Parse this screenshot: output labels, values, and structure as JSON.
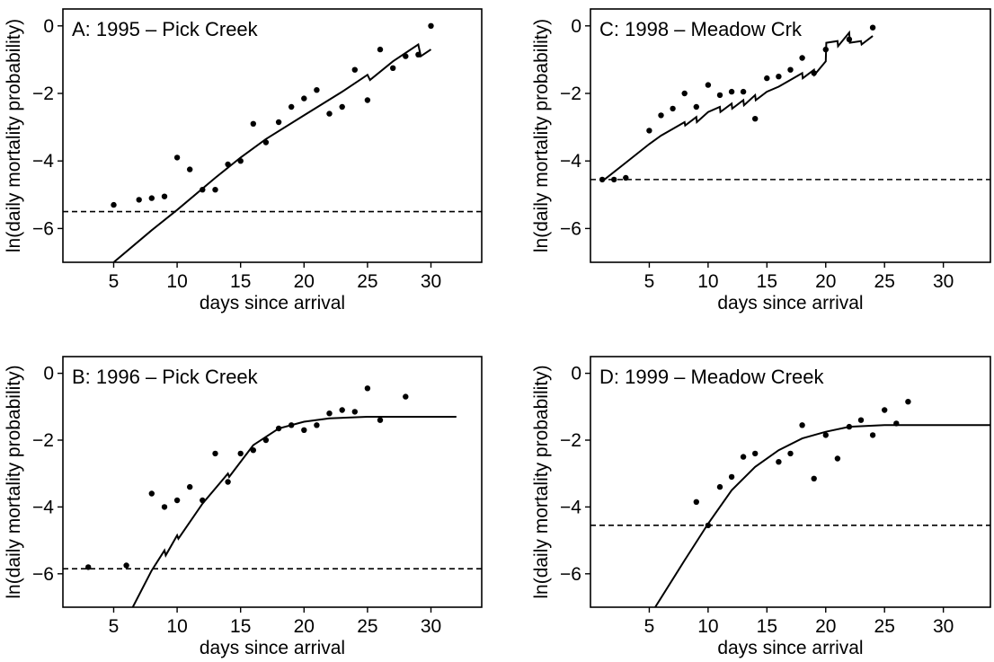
{
  "chart_data": [
    {
      "id": "A",
      "type": "scatter",
      "title": "A: 1995 – Pick Creek",
      "xlabel": "days since arrival",
      "ylabel": "ln(daily mortality probability)",
      "xlim": [
        1,
        34
      ],
      "ylim": [
        -7,
        0.5
      ],
      "xticks": [
        5,
        10,
        15,
        20,
        25,
        30
      ],
      "yticks": [
        0,
        -2,
        -4,
        -6
      ],
      "points": {
        "x": [
          5,
          7,
          8,
          9,
          10,
          11,
          12,
          13,
          14,
          15,
          16,
          17,
          18,
          19,
          20,
          21,
          22,
          23,
          24,
          25,
          26,
          27,
          28,
          29,
          30
        ],
        "y": [
          -5.3,
          -5.15,
          -5.1,
          -5.05,
          -3.9,
          -4.25,
          -4.85,
          -4.85,
          -4.1,
          -4.0,
          -2.9,
          -3.45,
          -2.85,
          -2.4,
          -2.15,
          -1.9,
          -2.6,
          -2.4,
          -1.3,
          -2.2,
          -0.7,
          -1.25,
          -0.9,
          -0.85,
          0.0
        ]
      },
      "fitted_curve": {
        "x": [
          5,
          8,
          10,
          13,
          15,
          17,
          20,
          23,
          25,
          25.2,
          27,
          29,
          29.2,
          30
        ],
        "y": [
          -7.0,
          -6.05,
          -5.45,
          -4.5,
          -3.9,
          -3.35,
          -2.65,
          -1.95,
          -1.45,
          -1.6,
          -1.05,
          -0.55,
          -0.9,
          -0.7
        ]
      },
      "reference_line": {
        "y": -5.5,
        "style": "dashed"
      }
    },
    {
      "id": "B",
      "type": "scatter",
      "title": "B: 1996 – Pick Creek",
      "xlabel": "days since arrival",
      "ylabel": "ln(daily mortality probability)",
      "xlim": [
        1,
        34
      ],
      "ylim": [
        -7,
        0.5
      ],
      "xticks": [
        5,
        10,
        15,
        20,
        25,
        30
      ],
      "yticks": [
        0,
        -2,
        -4,
        -6
      ],
      "points": {
        "x": [
          3,
          6,
          8,
          9,
          10,
          11,
          12,
          13,
          14,
          15,
          16,
          17,
          18,
          19,
          20,
          21,
          22,
          23,
          24,
          25,
          26,
          28
        ],
        "y": [
          -5.8,
          -5.75,
          -3.6,
          -4.0,
          -3.8,
          -3.4,
          -3.8,
          -2.4,
          -3.25,
          -2.4,
          -2.3,
          -2.0,
          -1.65,
          -1.55,
          -1.7,
          -1.55,
          -1.2,
          -1.1,
          -1.15,
          -0.45,
          -1.4,
          -0.7
        ]
      },
      "fitted_curve": {
        "x": [
          6.5,
          8,
          9,
          9.1,
          10,
          10.1,
          12,
          14,
          14.1,
          16,
          18,
          20,
          22,
          25,
          28,
          32
        ],
        "y": [
          -7.0,
          -5.9,
          -5.3,
          -5.45,
          -4.85,
          -4.95,
          -3.9,
          -3.0,
          -3.1,
          -2.15,
          -1.65,
          -1.45,
          -1.35,
          -1.3,
          -1.3,
          -1.3
        ]
      },
      "reference_line": {
        "y": -5.85,
        "style": "dashed"
      }
    },
    {
      "id": "C",
      "type": "scatter",
      "title": "C: 1998 – Meadow Crk",
      "xlabel": "days since arrival",
      "ylabel": "ln(daily mortality probability)",
      "xlim": [
        0,
        34
      ],
      "ylim": [
        -7,
        0.5
      ],
      "xticks": [
        5,
        10,
        15,
        20,
        25,
        30
      ],
      "yticks": [
        0,
        -2,
        -4,
        -6
      ],
      "points": {
        "x": [
          1,
          2,
          3,
          5,
          6,
          7,
          8,
          9,
          10,
          11,
          12,
          13,
          14,
          15,
          16,
          17,
          18,
          19,
          20,
          22,
          24
        ],
        "y": [
          -4.55,
          -4.55,
          -4.5,
          -3.1,
          -2.65,
          -2.45,
          -2.0,
          -2.4,
          -1.75,
          -2.05,
          -1.95,
          -1.95,
          -2.75,
          -1.55,
          -1.5,
          -1.3,
          -0.95,
          -1.4,
          -0.7,
          -0.4,
          -0.05
        ]
      },
      "fitted_curve": {
        "x": [
          1,
          3,
          5,
          6,
          7,
          8,
          8.05,
          9,
          9.05,
          10,
          11,
          11.05,
          12,
          12.05,
          13,
          13.05,
          14,
          14.05,
          15,
          16,
          17,
          18,
          18.05,
          19,
          19.05,
          20,
          20.05,
          21,
          21.05,
          22,
          22.05,
          23,
          23.05,
          24
        ],
        "y": [
          -4.6,
          -4.05,
          -3.5,
          -3.25,
          -3.05,
          -2.85,
          -2.95,
          -2.7,
          -2.85,
          -2.55,
          -2.4,
          -2.55,
          -2.3,
          -2.45,
          -2.2,
          -2.35,
          -2.05,
          -2.2,
          -1.95,
          -1.8,
          -1.6,
          -1.4,
          -1.55,
          -1.3,
          -1.45,
          -1.05,
          -0.5,
          -0.45,
          -0.6,
          -0.2,
          -0.5,
          -0.45,
          -0.55,
          -0.3
        ]
      },
      "reference_line": {
        "y": -4.55,
        "style": "dashed"
      }
    },
    {
      "id": "D",
      "type": "scatter",
      "title": "D: 1999 – Meadow Creek",
      "xlabel": "days since arrival",
      "ylabel": "ln(daily mortality probability)",
      "xlim": [
        0,
        34
      ],
      "ylim": [
        -7,
        0.5
      ],
      "xticks": [
        5,
        10,
        15,
        20,
        25,
        30
      ],
      "yticks": [
        0,
        -2,
        -4,
        -6
      ],
      "points": {
        "x": [
          9,
          10,
          11,
          12,
          13,
          14,
          16,
          17,
          18,
          19,
          20,
          21,
          22,
          23,
          24,
          25,
          26,
          27
        ],
        "y": [
          -3.85,
          -4.55,
          -3.4,
          -3.1,
          -2.5,
          -2.4,
          -2.65,
          -2.4,
          -1.55,
          -3.15,
          -1.85,
          -2.55,
          -1.6,
          -1.4,
          -1.85,
          -1.1,
          -1.5,
          -0.85
        ]
      },
      "fitted_curve": {
        "x": [
          5.5,
          8,
          10,
          12,
          14,
          16,
          18,
          20,
          22,
          25,
          28,
          34
        ],
        "y": [
          -7.0,
          -5.6,
          -4.5,
          -3.5,
          -2.8,
          -2.3,
          -1.95,
          -1.75,
          -1.6,
          -1.55,
          -1.55,
          -1.55
        ]
      },
      "reference_line": {
        "y": -4.55,
        "style": "dashed"
      }
    }
  ]
}
